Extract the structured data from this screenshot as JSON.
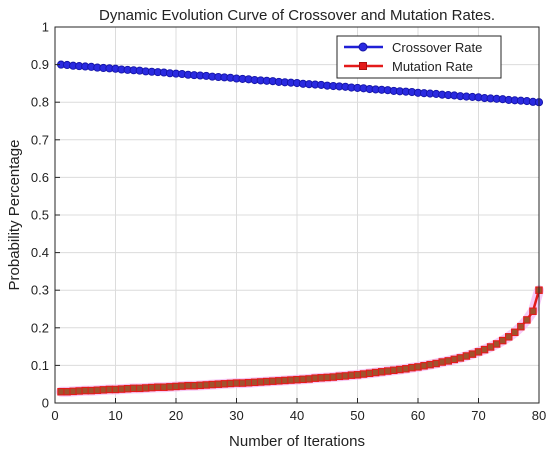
{
  "chart_data": {
    "type": "line",
    "title": "Dynamic Evolution Curve of Crossover and Mutation Rates.",
    "xlabel": "Number of Iterations",
    "ylabel": "Probability Percentage",
    "xlim": [
      0,
      80
    ],
    "ylim": [
      0,
      1
    ],
    "xticks": [
      "0",
      "10",
      "20",
      "30",
      "40",
      "50",
      "60",
      "70",
      "80"
    ],
    "yticks": [
      "0",
      "0.1",
      "0.2",
      "0.3",
      "0.4",
      "0.5",
      "0.6",
      "0.7",
      "0.8",
      "0.9",
      "1"
    ],
    "grid": true,
    "legend_position": "top-right",
    "x": [
      1,
      2,
      3,
      4,
      5,
      6,
      7,
      8,
      9,
      10,
      11,
      12,
      13,
      14,
      15,
      16,
      17,
      18,
      19,
      20,
      21,
      22,
      23,
      24,
      25,
      26,
      27,
      28,
      29,
      30,
      31,
      32,
      33,
      34,
      35,
      36,
      37,
      38,
      39,
      40,
      41,
      42,
      43,
      44,
      45,
      46,
      47,
      48,
      49,
      50,
      51,
      52,
      53,
      54,
      55,
      56,
      57,
      58,
      59,
      60,
      61,
      62,
      63,
      64,
      65,
      66,
      67,
      68,
      69,
      70,
      71,
      72,
      73,
      74,
      75,
      76,
      77,
      78,
      79,
      80
    ],
    "series": [
      {
        "name": "Crossover Rate",
        "color": "#1f1fd6",
        "marker": "circle",
        "values": [
          0.9,
          0.899,
          0.897,
          0.896,
          0.895,
          0.894,
          0.892,
          0.891,
          0.89,
          0.889,
          0.887,
          0.886,
          0.885,
          0.884,
          0.882,
          0.881,
          0.88,
          0.879,
          0.877,
          0.876,
          0.875,
          0.873,
          0.872,
          0.871,
          0.87,
          0.868,
          0.867,
          0.866,
          0.865,
          0.863,
          0.862,
          0.861,
          0.859,
          0.858,
          0.857,
          0.856,
          0.854,
          0.853,
          0.852,
          0.851,
          0.849,
          0.848,
          0.847,
          0.846,
          0.844,
          0.843,
          0.842,
          0.841,
          0.839,
          0.838,
          0.837,
          0.835,
          0.834,
          0.833,
          0.832,
          0.83,
          0.829,
          0.828,
          0.827,
          0.825,
          0.824,
          0.823,
          0.822,
          0.82,
          0.819,
          0.818,
          0.816,
          0.815,
          0.814,
          0.813,
          0.811,
          0.81,
          0.809,
          0.808,
          0.806,
          0.805,
          0.804,
          0.803,
          0.801,
          0.8
        ]
      },
      {
        "name": "Mutation Rate",
        "color": "#e41a1a",
        "marker": "square",
        "values": [
          0.03,
          0.03,
          0.031,
          0.032,
          0.033,
          0.033,
          0.034,
          0.035,
          0.036,
          0.036,
          0.037,
          0.038,
          0.039,
          0.039,
          0.04,
          0.041,
          0.042,
          0.042,
          0.043,
          0.044,
          0.045,
          0.046,
          0.046,
          0.047,
          0.048,
          0.049,
          0.05,
          0.051,
          0.052,
          0.053,
          0.053,
          0.054,
          0.055,
          0.056,
          0.057,
          0.058,
          0.059,
          0.06,
          0.061,
          0.062,
          0.063,
          0.064,
          0.066,
          0.067,
          0.068,
          0.069,
          0.071,
          0.072,
          0.074,
          0.075,
          0.077,
          0.079,
          0.081,
          0.083,
          0.085,
          0.087,
          0.089,
          0.091,
          0.094,
          0.096,
          0.099,
          0.102,
          0.105,
          0.109,
          0.112,
          0.116,
          0.12,
          0.125,
          0.13,
          0.136,
          0.142,
          0.149,
          0.157,
          0.166,
          0.176,
          0.188,
          0.203,
          0.221,
          0.244,
          0.3
        ]
      }
    ]
  }
}
